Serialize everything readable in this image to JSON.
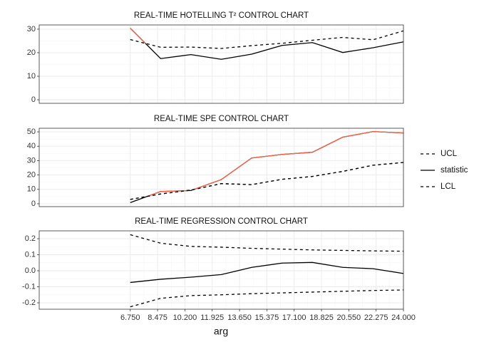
{
  "chart_data": [
    {
      "type": "line",
      "title": "REAL-TIME HOTELLING T² CONTROL CHART",
      "ylim": [
        -1.5,
        31.8
      ],
      "yticks": [
        0,
        10,
        20,
        30
      ],
      "series": [
        {
          "name": "UCL",
          "color": "#000000",
          "dash": true,
          "values": [
            25.6,
            22.3,
            22.4,
            21.8,
            23.0,
            24.0,
            25.3,
            26.5,
            25.5,
            29.3
          ]
        },
        {
          "name": "statistic",
          "color": "#000000",
          "dash": false,
          "values": [
            30.4,
            17.5,
            19.2,
            17.2,
            19.4,
            23.1,
            24.3,
            20.1,
            22.1,
            24.6
          ]
        }
      ]
    },
    {
      "type": "line",
      "title": "REAL-TIME SPE CONTROL CHART",
      "ylim": [
        -2,
        52.5
      ],
      "yticks": [
        0,
        10,
        20,
        30,
        40,
        50
      ],
      "series": [
        {
          "name": "UCL",
          "color": "#000000",
          "dash": true,
          "values": [
            3.0,
            6.8,
            9.5,
            14.0,
            13.3,
            17.0,
            19.0,
            22.5,
            26.8,
            28.7
          ]
        },
        {
          "name": "statistic",
          "color": "#000000",
          "dash": false,
          "values": [
            0.8,
            8.5,
            9.2,
            16.8,
            31.8,
            34.3,
            35.8,
            46.3,
            50.2,
            49.2
          ]
        },
        {
          "name": "LCL",
          "color": "#000000",
          "dash": true,
          "values": [
            3.0,
            6.8,
            9.5,
            14.0,
            13.3,
            17.0,
            19.0,
            22.5,
            26.8,
            28.7
          ]
        }
      ]
    },
    {
      "type": "line",
      "title": "REAL-TIME REGRESSION CONTROL CHART",
      "ylim": [
        -0.24,
        0.249
      ],
      "yticks": [
        -0.2,
        -0.1,
        {
          "value": 0,
          "label": "0.0"
        },
        0.1,
        0.2
      ],
      "series": [
        {
          "name": "UCL",
          "color": "#000000",
          "dash": true,
          "values": [
            0.225,
            0.172,
            0.152,
            0.147,
            0.14,
            0.135,
            0.13,
            0.127,
            0.124,
            0.122
          ]
        },
        {
          "name": "statistic",
          "color": "#000000",
          "dash": false,
          "values": [
            -0.073,
            -0.053,
            -0.04,
            -0.024,
            0.021,
            0.048,
            0.052,
            0.021,
            0.013,
            -0.017
          ]
        },
        {
          "name": "LCL",
          "color": "#000000",
          "dash": true,
          "values": [
            -0.225,
            -0.172,
            -0.155,
            -0.15,
            -0.143,
            -0.138,
            -0.133,
            -0.128,
            -0.123,
            -0.12
          ]
        }
      ]
    }
  ],
  "x": [
    6.75,
    8.667,
    10.583,
    12.5,
    14.417,
    16.333,
    18.25,
    20.167,
    22.083,
    24
  ],
  "xlim": [
    1,
    24
  ],
  "xticks": [
    {
      "value": 6.75,
      "label": "6.750"
    },
    {
      "value": 8.475,
      "label": "8.475"
    },
    {
      "value": 10.2,
      "label": "10.200"
    },
    {
      "value": 11.925,
      "label": "11.925"
    },
    {
      "value": 13.65,
      "label": "13.650"
    },
    {
      "value": 15.375,
      "label": "15.375"
    },
    {
      "value": 17.1,
      "label": "17.100"
    },
    {
      "value": 18.825,
      "label": "18.825"
    },
    {
      "value": 20.55,
      "label": "20.550"
    },
    {
      "value": 22.275,
      "label": "22.275"
    },
    {
      "value": 24,
      "label": "24.000"
    }
  ],
  "x_label": "arg",
  "grid": true,
  "out_of_control_color": "#ff6347",
  "legend_position": "right"
}
